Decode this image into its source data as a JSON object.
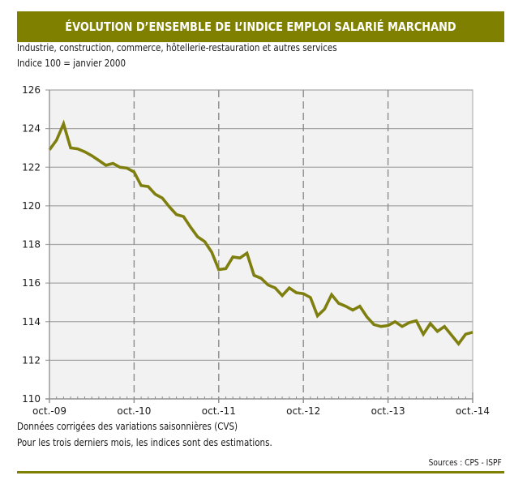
{
  "header": {
    "title": "ÉVOLUTION D’ENSEMBLE DE L’INDICE EMPLOI SALARIÉ MARCHAND"
  },
  "subtitles": [
    "Industrie, construction, commerce, hôtellerie-restauration et autres services",
    "Indice 100 = janvier 2000"
  ],
  "notes": [
    "Données corrigées des variations saisonnières (CVS)",
    "Pour les trois derniers mois, les indices sont des estimations."
  ],
  "sources": "Sources : CPS - ISPF",
  "colors": {
    "accent": "#7f7f00",
    "line": "#7f7f0f",
    "plot_bg": "#f2f2f2",
    "grid": "#a6a6a6"
  },
  "chart_data": {
    "type": "line",
    "title": "ÉVOLUTION D’ENSEMBLE DE L’INDICE EMPLOI SALARIÉ MARCHAND",
    "xlabel": "",
    "ylabel": "",
    "ylim": [
      110,
      126
    ],
    "yticks": [
      "110",
      "112",
      "114",
      "116",
      "118",
      "120",
      "122",
      "124",
      "126"
    ],
    "xticks": [
      "oct.-09",
      "oct.-10",
      "oct.-11",
      "oct.-12",
      "oct.-13",
      "oct.-14"
    ],
    "x_unit": "month",
    "x_start": "oct.-09",
    "x_end": "oct.-14",
    "grid": "horizontal solid, vertical dashed at each year",
    "series": [
      {
        "name": "Indice emploi salarié marchand",
        "values": [
          122.9,
          123.4,
          124.25,
          123.0,
          122.95,
          122.8,
          122.6,
          122.35,
          122.1,
          122.2,
          122.0,
          121.95,
          121.75,
          121.05,
          121.0,
          120.6,
          120.4,
          119.95,
          119.55,
          119.45,
          118.9,
          118.4,
          118.15,
          117.6,
          116.7,
          116.75,
          117.35,
          117.3,
          117.55,
          116.4,
          116.25,
          115.9,
          115.75,
          115.35,
          115.75,
          115.5,
          115.45,
          115.25,
          114.3,
          114.65,
          115.4,
          114.95,
          114.8,
          114.6,
          114.8,
          114.25,
          113.85,
          113.75,
          113.8,
          114.0,
          113.75,
          113.95,
          114.05,
          113.35,
          113.9,
          113.5,
          113.75,
          113.3,
          112.85,
          113.35,
          113.45
        ]
      }
    ]
  }
}
